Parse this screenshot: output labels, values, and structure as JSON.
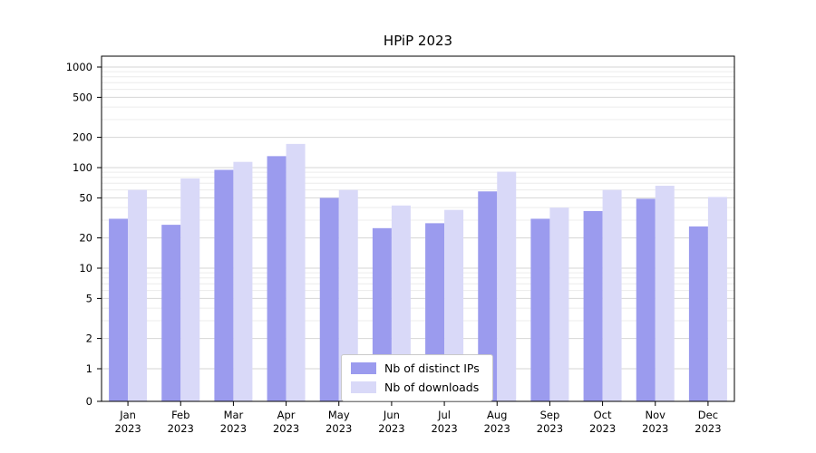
{
  "title": "HPiP 2023",
  "colors": {
    "axis": "#000000",
    "grid_major": "#d6d6d6",
    "grid_minor": "#ececec",
    "background": "#ffffff",
    "legend_border": "#c9c9c9"
  },
  "legend": {
    "position": "lower center",
    "items": [
      {
        "label": "Nb of distinct IPs"
      },
      {
        "label": "Nb of downloads"
      }
    ]
  },
  "chart_data": {
    "type": "bar",
    "title": "HPiP 2023",
    "yscale": "symlog",
    "grid": true,
    "ylim": [
      0,
      1300
    ],
    "y_ticks": [
      0,
      1,
      2,
      5,
      10,
      20,
      50,
      100,
      200,
      500,
      1000
    ],
    "y_minor_ticks": [
      3,
      4,
      6,
      7,
      8,
      9,
      30,
      40,
      60,
      70,
      80,
      90,
      300,
      400,
      600,
      700,
      800,
      900
    ],
    "categories": [
      "Jan 2023",
      "Feb 2023",
      "Mar 2023",
      "Apr 2023",
      "May 2023",
      "Jun 2023",
      "Jul 2023",
      "Aug 2023",
      "Sep 2023",
      "Oct 2023",
      "Nov 2023",
      "Dec 2023"
    ],
    "x_tick_line1": [
      "Jan",
      "Feb",
      "Mar",
      "Apr",
      "May",
      "Jun",
      "Jul",
      "Aug",
      "Sep",
      "Oct",
      "Nov",
      "Dec"
    ],
    "x_tick_line2": "2023",
    "legend_position": "lower center",
    "series": [
      {
        "name": "Nb of distinct IPs",
        "color": "#9b9bee",
        "values": [
          31,
          27,
          95,
          130,
          50,
          25,
          28,
          58,
          31,
          37,
          49,
          26
        ]
      },
      {
        "name": "Nb of downloads",
        "color": "#d9d9f8",
        "values": [
          60,
          78,
          114,
          172,
          60,
          42,
          38,
          91,
          40,
          60,
          66,
          51
        ]
      }
    ]
  }
}
